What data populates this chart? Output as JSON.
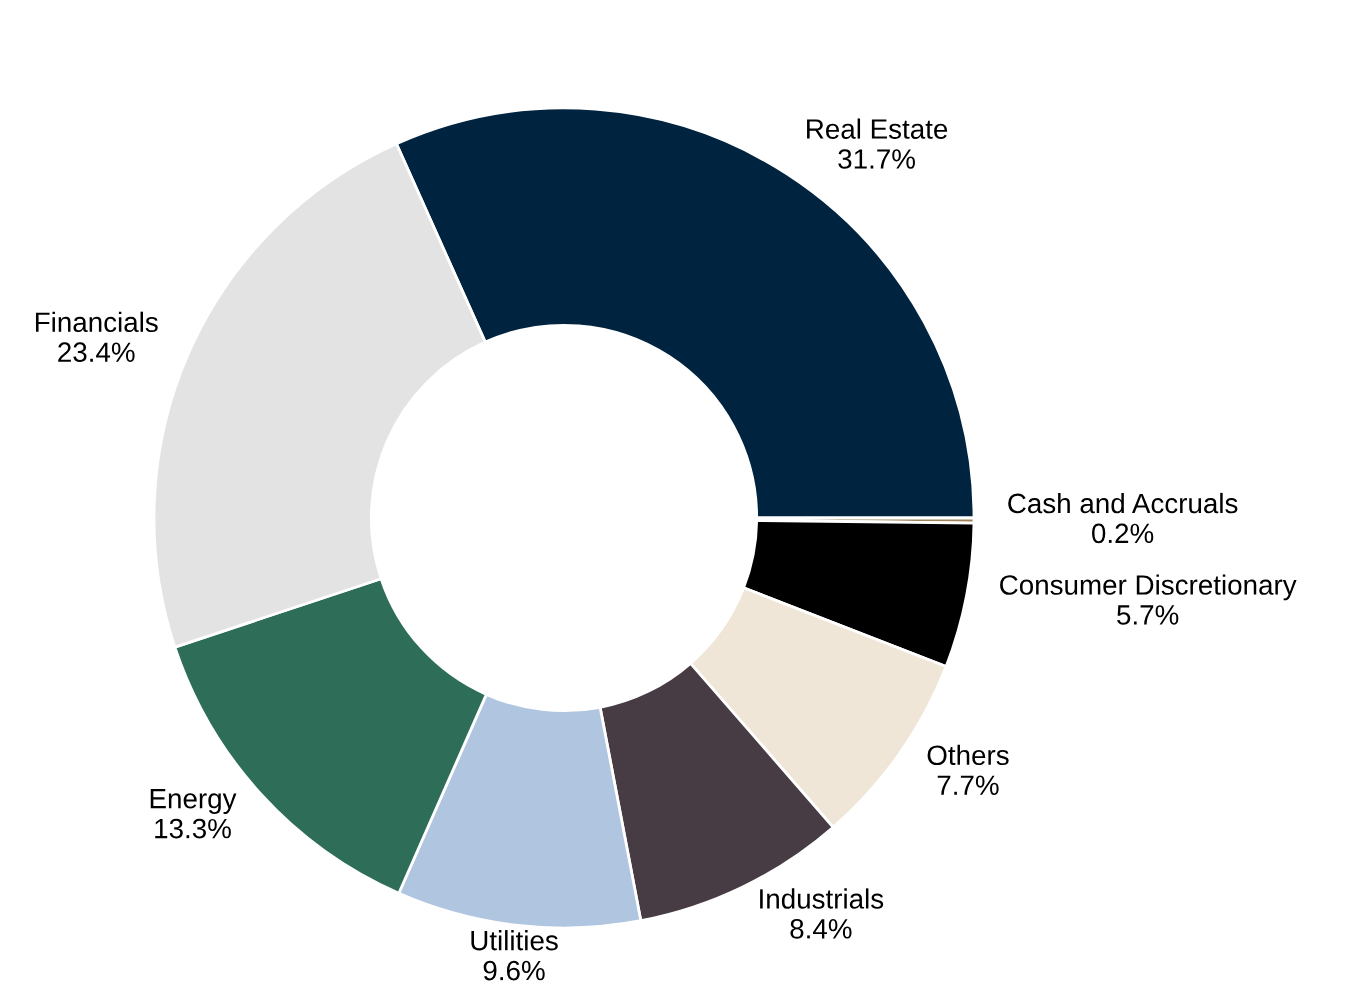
{
  "chart_data": {
    "type": "donut",
    "categories": [
      "Real Estate",
      "Cash and Accruals",
      "Consumer Discretionary",
      "Others",
      "Industrials",
      "Utilities",
      "Energy",
      "Financials"
    ],
    "values": [
      31.7,
      0.2,
      5.7,
      7.7,
      8.4,
      9.6,
      13.3,
      23.4
    ],
    "value_labels": [
      "31.7%",
      "0.2%",
      "5.7%",
      "7.7%",
      "8.4%",
      "9.6%",
      "13.3%",
      "23.4%"
    ],
    "colors": [
      "#00243f",
      "#a0825a",
      "#000000",
      "#f0e6d8",
      "#473c44",
      "#b0c6e0",
      "#2e6e58",
      "#e3e3e3"
    ],
    "legend": false
  }
}
